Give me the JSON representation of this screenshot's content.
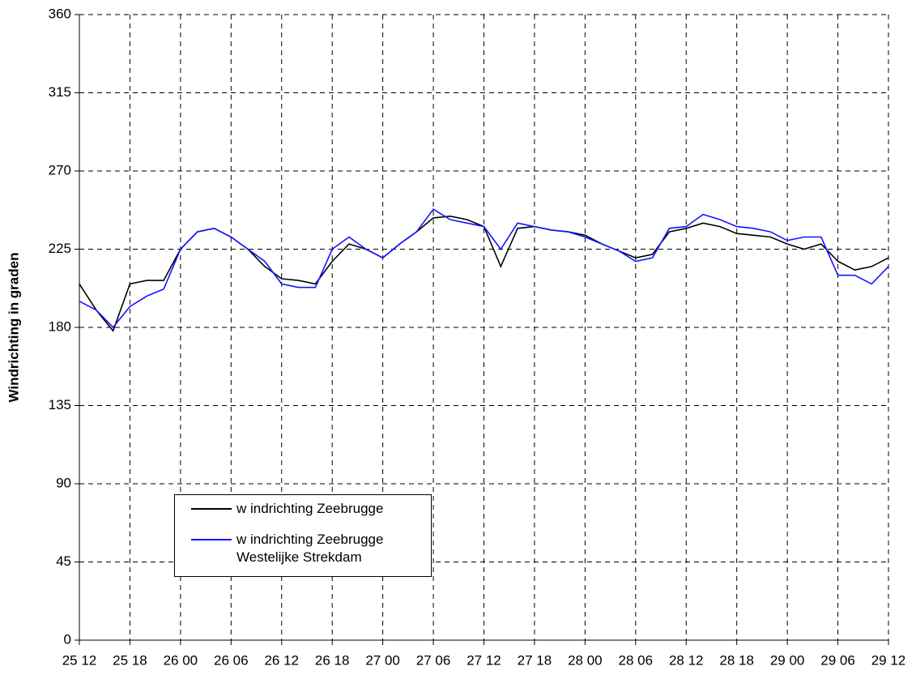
{
  "chart_data": {
    "type": "line",
    "y_label": "Windrichting in graden",
    "categories": [
      "25 12",
      null,
      null,
      "25 18",
      null,
      null,
      "26 00",
      null,
      null,
      "26 06",
      null,
      null,
      "26 12",
      null,
      null,
      "26 18",
      null,
      null,
      "27 00",
      null,
      null,
      "27 06",
      null,
      null,
      "27 12",
      null,
      null,
      "27 18",
      null,
      null,
      "28 00",
      null,
      null,
      "28 06",
      null,
      null,
      "28 12",
      null,
      null,
      "28 18",
      null,
      null,
      "29 00",
      null,
      null,
      "29 06",
      null,
      null,
      "29 12"
    ],
    "series": [
      {
        "name": "w indrichting Zeebrugge",
        "color": "#000000",
        "values": [
          205,
          190,
          178,
          205,
          207,
          207,
          225,
          235,
          237,
          232,
          225,
          215,
          208,
          207,
          205,
          218,
          228,
          225,
          220,
          228,
          235,
          243,
          244,
          242,
          238,
          215,
          237,
          238,
          236,
          235,
          233,
          228,
          224,
          220,
          222,
          235,
          237,
          240,
          238,
          234,
          233,
          232,
          228,
          225,
          228,
          218,
          213,
          215,
          220
        ]
      },
      {
        "name": "w indrichting Zeebrugge Westelijke Strekdam",
        "color": "#1414ff",
        "values": [
          195,
          190,
          180,
          192,
          198,
          202,
          225,
          235,
          237,
          232,
          225,
          218,
          205,
          203,
          203,
          225,
          232,
          225,
          220,
          228,
          235,
          248,
          242,
          240,
          238,
          225,
          240,
          238,
          236,
          235,
          232,
          228,
          224,
          218,
          220,
          237,
          238,
          245,
          242,
          238,
          237,
          235,
          230,
          232,
          232,
          210,
          210,
          205,
          215
        ]
      }
    ],
    "ylim": [
      0,
      360
    ],
    "yticks": [
      0,
      45,
      90,
      135,
      180,
      225,
      270,
      315,
      360
    ],
    "grid": true
  }
}
